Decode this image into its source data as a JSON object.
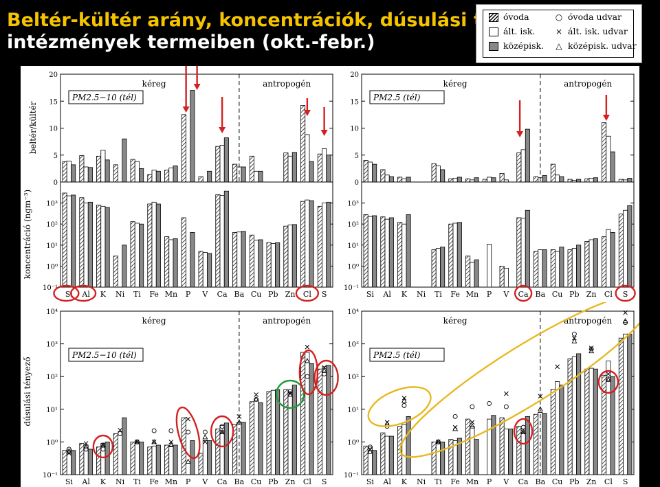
{
  "slide": {
    "title_line1": "Beltér-kültér arány, koncentrációk, dúsulási t",
    "title_line2": "intézmények termeiben (okt.-febr.)"
  },
  "legend": {
    "series": [
      {
        "label": "óvoda",
        "pattern": "hatch"
      },
      {
        "label": "ált. isk.",
        "pattern": "white"
      },
      {
        "label": "középisk.",
        "pattern": "grey"
      }
    ],
    "markers": [
      {
        "label": "óvoda udvar",
        "symbol": "○"
      },
      {
        "label": "ált. isk. udvar",
        "symbol": "×"
      },
      {
        "label": "középisk. udvar",
        "symbol": "△"
      }
    ]
  },
  "colors": {
    "title_yellow": "#f5c400",
    "mark_red": "#d42020",
    "mark_green": "#1f9a3a",
    "mark_orange": "#e8b820",
    "bar_grey": "#888888"
  },
  "chart_data": [
    {
      "type": "bar",
      "panel": "top-left-ratio",
      "title": "PM2.5−10 (tél)",
      "ylabel": "beltér/kültér",
      "ylim": [
        0,
        20
      ],
      "yticks": [
        "0",
        "5",
        "10",
        "15",
        "20"
      ],
      "region_labels": [
        "kéreg",
        "antropogén"
      ],
      "categories": [
        "Si",
        "Al",
        "K",
        "Ni",
        "Ti",
        "Fe",
        "Mn",
        "P",
        "V",
        "Ca",
        "Ba",
        "Cu",
        "Pb",
        "Zn",
        "Cl",
        "S"
      ],
      "series": [
        {
          "name": "óvoda",
          "values": [
            3.8,
            4.9,
            4.8,
            3.2,
            4.2,
            1.4,
            2.2,
            12.5,
            1.0,
            6.6,
            3.3,
            4.8,
            0,
            5.4,
            14.2,
            5.2
          ]
        },
        {
          "name": "ált. isk.",
          "values": [
            3.9,
            2.8,
            5.9,
            0,
            3.8,
            2.2,
            2.6,
            0,
            0,
            6.8,
            2.8,
            2.0,
            0,
            4.8,
            8.8,
            6.2
          ]
        },
        {
          "name": "középisk.",
          "values": [
            3.2,
            2.7,
            4.1,
            8.0,
            2.5,
            2.0,
            3.0,
            17.0,
            2.0,
            8.2,
            2.8,
            2.0,
            0,
            5.5,
            3.8,
            5.0
          ]
        }
      ],
      "annotations": {
        "red_arrows": [
          "P",
          "Ca",
          "Cl",
          "S"
        ]
      }
    },
    {
      "type": "bar",
      "panel": "top-right-ratio",
      "title": "PM2.5 (tél)",
      "ylim": [
        0,
        20
      ],
      "yticks": [
        "0",
        "5",
        "10",
        "15",
        "20"
      ],
      "region_labels": [
        "kéreg",
        "antropogén"
      ],
      "categories": [
        "Si",
        "Al",
        "K",
        "Ni",
        "Ti",
        "Fe",
        "Mn",
        "P",
        "V",
        "Ca",
        "Ba",
        "Cu",
        "Pb",
        "Zn",
        "Cl",
        "S"
      ],
      "series": [
        {
          "name": "óvoda",
          "values": [
            4.0,
            2.3,
            0.9,
            0,
            3.4,
            0.6,
            0.6,
            0.5,
            1.6,
            5.4,
            1.0,
            3.3,
            0.5,
            0.6,
            11.0,
            0.5
          ]
        },
        {
          "name": "ált. isk.",
          "values": [
            3.7,
            1.3,
            0.6,
            0,
            3.0,
            0.7,
            0.4,
            0.9,
            0.4,
            6.0,
            0.8,
            1.3,
            0.3,
            0.7,
            8.5,
            0.4
          ]
        },
        {
          "name": "középisk.",
          "values": [
            3.3,
            1.0,
            0.9,
            0,
            2.3,
            0.9,
            0.8,
            0.8,
            0,
            9.8,
            1.2,
            1.0,
            0.5,
            0.8,
            5.6,
            0.7
          ]
        }
      ],
      "annotations": {
        "red_arrows": [
          "Ca",
          "Cl"
        ]
      }
    },
    {
      "type": "bar",
      "panel": "top-left-concentration",
      "ylabel": "koncentráció (ngm⁻³)",
      "y_scale": "log",
      "ylim": [
        0.1,
        10000
      ],
      "yticks": [
        "10⁻¹",
        "10⁰",
        "10¹",
        "10²",
        "10³"
      ],
      "categories": [
        "Si",
        "Al",
        "K",
        "Ni",
        "Ti",
        "Fe",
        "Mn",
        "P",
        "V",
        "Ca",
        "Ba",
        "Cu",
        "Pb",
        "Zn",
        "Cl",
        "S"
      ],
      "series": [
        {
          "name": "óvoda",
          "values": [
            3000,
            1800,
            800,
            3,
            130,
            900,
            25,
            200,
            5,
            2500,
            40,
            30,
            13,
            80,
            1200,
            700
          ]
        },
        {
          "name": "ált. isk.",
          "values": [
            2200,
            1000,
            700,
            0,
            110,
            1100,
            18,
            0,
            4.5,
            2300,
            42,
            17,
            12,
            90,
            1400,
            1000
          ]
        },
        {
          "name": "középisk.",
          "values": [
            2400,
            1100,
            620,
            10,
            100,
            900,
            20,
            40,
            4,
            3700,
            45,
            18,
            13,
            95,
            1300,
            1100
          ]
        }
      ],
      "annotations": {
        "red_circles": [
          "Si",
          "Al",
          "Cl"
        ]
      }
    },
    {
      "type": "bar",
      "panel": "top-right-concentration",
      "y_scale": "log",
      "ylim": [
        0.1,
        10000
      ],
      "yticks": [
        "10⁻¹",
        "10⁰",
        "10¹",
        "10²",
        "10³"
      ],
      "categories": [
        "Si",
        "Al",
        "K",
        "Ni",
        "Ti",
        "Fe",
        "Mn",
        "P",
        "V",
        "Ca",
        "Ba",
        "Cu",
        "Pb",
        "Zn",
        "Cl",
        "S"
      ],
      "series": [
        {
          "name": "óvoda",
          "values": [
            280,
            220,
            120,
            0,
            6,
            100,
            3,
            0,
            1,
            200,
            5,
            6,
            6,
            15,
            25,
            300
          ]
        },
        {
          "name": "ált. isk.",
          "values": [
            230,
            170,
            100,
            0,
            7,
            110,
            1.5,
            11,
            0.8,
            190,
            6,
            5,
            7,
            18,
            55,
            450
          ]
        },
        {
          "name": "középisk.",
          "values": [
            250,
            200,
            280,
            0,
            8,
            120,
            2,
            0,
            0,
            450,
            6,
            8,
            10,
            20,
            40,
            750
          ]
        }
      ],
      "annotations": {
        "red_circles": [
          "Ca",
          "S"
        ]
      }
    },
    {
      "type": "bar",
      "panel": "bottom-left-enrichment",
      "title": "PM2.5−10 (tél)",
      "ylabel": "dúsulási tényező",
      "y_scale": "log",
      "ylim": [
        0.1,
        10000
      ],
      "yticks": [
        "10⁻¹",
        "10⁰",
        "10¹",
        "10²",
        "10³",
        "10⁴"
      ],
      "region_labels": [
        "kéreg",
        "antropogén"
      ],
      "categories": [
        "Si",
        "Al",
        "K",
        "Ni",
        "Ti",
        "Fe",
        "Mn",
        "P",
        "V",
        "Ca",
        "Ba",
        "Cu",
        "Pb",
        "Zn",
        "Cl",
        "S"
      ],
      "series": [
        {
          "name": "óvoda",
          "values": [
            0.55,
            0.9,
            0.7,
            1.8,
            1.0,
            0.7,
            0.8,
            5.5,
            0.45,
            2.5,
            3.5,
            17,
            35,
            40,
            550,
            170
          ]
        },
        {
          "name": "ált. isk.",
          "values": [
            0.6,
            0.8,
            0.9,
            0,
            1.0,
            0.75,
            0.75,
            0,
            1.1,
            3.2,
            4.0,
            18,
            38,
            35,
            550,
            200
          ]
        },
        {
          "name": "középisk.",
          "values": [
            0.55,
            0.6,
            1.0,
            5.5,
            1.0,
            0.8,
            0.8,
            1.1,
            1.1,
            3.8,
            4.0,
            16,
            40,
            55,
            250,
            220
          ]
        }
      ],
      "markers": {
        "óvoda udvar": [
          0.6,
          0.6,
          0.6,
          1.8,
          1.0,
          2.2,
          2.2,
          2.0,
          2.0,
          3.0,
          0,
          20,
          0,
          35,
          100,
          120
        ],
        "ált. isk. udvar": [
          0.45,
          0.9,
          0.8,
          2.3,
          1.0,
          1.0,
          1.0,
          5.0,
          1.0,
          2.0,
          6.0,
          28,
          0,
          30,
          800,
          190
        ],
        "középisk. udvar": [
          0.5,
          0.7,
          0.8,
          0,
          1.0,
          1.0,
          0.8,
          0.25,
          1.4,
          2.0,
          4.0,
          20,
          0,
          28,
          300,
          150
        ]
      },
      "annotations": {
        "red_circles": [
          "K",
          "P",
          "Ca",
          "Cl",
          "S"
        ],
        "green_circles": [
          "Zn"
        ]
      }
    },
    {
      "type": "bar",
      "panel": "bottom-right-enrichment",
      "title": "PM2.5 (tél)",
      "y_scale": "log",
      "ylim": [
        0.1,
        10000
      ],
      "yticks": [
        "10⁻¹",
        "10⁰",
        "10¹",
        "10²",
        "10³",
        "10⁴"
      ],
      "region_labels": [
        "kéreg",
        "antropogén"
      ],
      "categories": [
        "Si",
        "Al",
        "K",
        "Ni",
        "Ti",
        "Fe",
        "Mn",
        "P",
        "V",
        "Ca",
        "Ba",
        "Cu",
        "Pb",
        "Zn",
        "Cl",
        "S"
      ],
      "series": [
        {
          "name": "óvoda",
          "values": [
            0.75,
            1.9,
            3.0,
            0,
            1.0,
            1.2,
            5.0,
            0,
            5.5,
            3.0,
            7.0,
            40,
            350,
            170,
            110,
            1500
          ]
        },
        {
          "name": "ált. isk.",
          "values": [
            0.7,
            1.5,
            3.5,
            0,
            1.0,
            1.1,
            3.0,
            5.0,
            2.5,
            2.5,
            8.0,
            70,
            400,
            180,
            300,
            2000
          ]
        },
        {
          "name": "középisk.",
          "values": [
            0.55,
            1.5,
            6.0,
            0,
            1.0,
            1.3,
            1.2,
            6.5,
            2.5,
            6.0,
            7.5,
            55,
            500,
            170,
            100,
            2000
          ]
        }
      ],
      "markers": {
        "óvoda udvar": [
          0.7,
          3.0,
          13,
          0,
          1.0,
          6.0,
          12,
          15,
          12,
          2.8,
          0,
          0,
          2000,
          700,
          85,
          4500
        ],
        "ált. isk. udvar": [
          0.6,
          4.0,
          22,
          0,
          1.0,
          2.8,
          4.0,
          0,
          30,
          2.0,
          25,
          200,
          1500,
          750,
          120,
          9000
        ],
        "középisk. udvar": [
          0.5,
          3.5,
          18,
          0,
          1.0,
          2.5,
          3.0,
          0,
          0,
          2.0,
          10,
          0,
          1200,
          600,
          80,
          5000
        ]
      },
      "annotations": {
        "orange_ellipses": [
          "Al–K",
          "Mn–S"
        ],
        "red_circles": [
          "Ca",
          "Cl"
        ]
      }
    }
  ]
}
